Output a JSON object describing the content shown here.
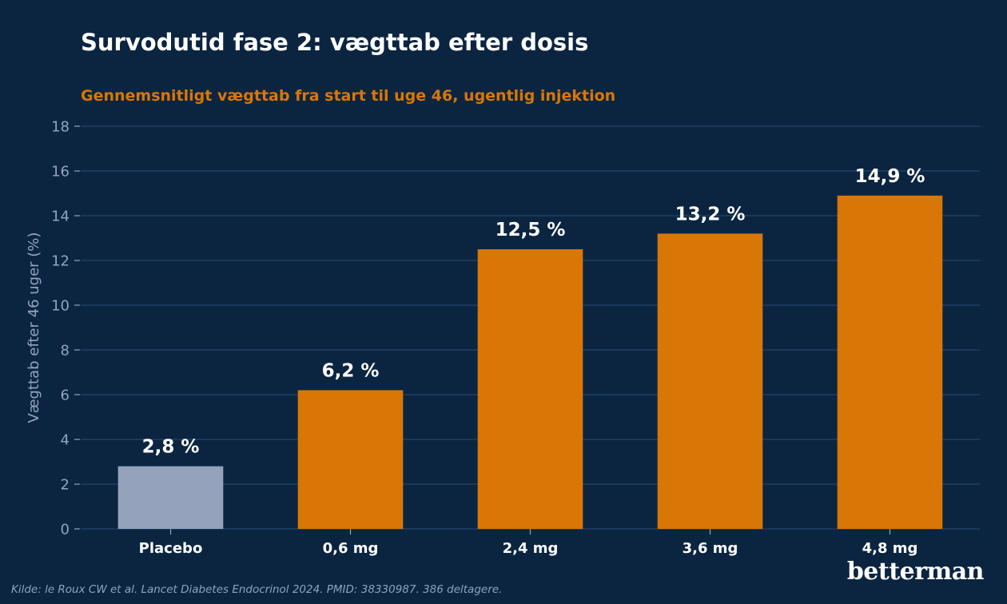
{
  "chart_data": {
    "type": "bar",
    "title": "Survodutid fase 2: vægttab efter dosis",
    "subtitle": "Gennemsnitligt vægttab fra start til uge 46, ugentlig injektion",
    "xlabel": "",
    "ylabel": "Vægttab efter 46 uger (%)",
    "ylim": [
      0,
      18
    ],
    "yticks": [
      0,
      2,
      4,
      6,
      8,
      10,
      12,
      14,
      16,
      18
    ],
    "grid": true,
    "categories": [
      "Placebo",
      "0,6 mg",
      "2,4 mg",
      "3,6 mg",
      "4,8 mg"
    ],
    "values": [
      2.8,
      6.2,
      12.5,
      13.2,
      14.9
    ],
    "data_labels": [
      "2,8 %",
      "6,2 %",
      "12,5 %",
      "13,2 %",
      "14,9 %"
    ],
    "bar_colors": [
      "#94a3bb",
      "#d97706",
      "#d97706",
      "#d97706",
      "#d97706"
    ]
  },
  "footer": {
    "source": "Kilde: le Roux CW et al. Lancet Diabetes Endocrinol 2024. PMID: 38330987. 386 deltagere.",
    "brand": "betterman"
  },
  "colors": {
    "background": "#0b2541",
    "grid": "#1e3f66",
    "axis_text": "#94a3bb",
    "accent": "#d97706",
    "placebo": "#94a3bb"
  }
}
